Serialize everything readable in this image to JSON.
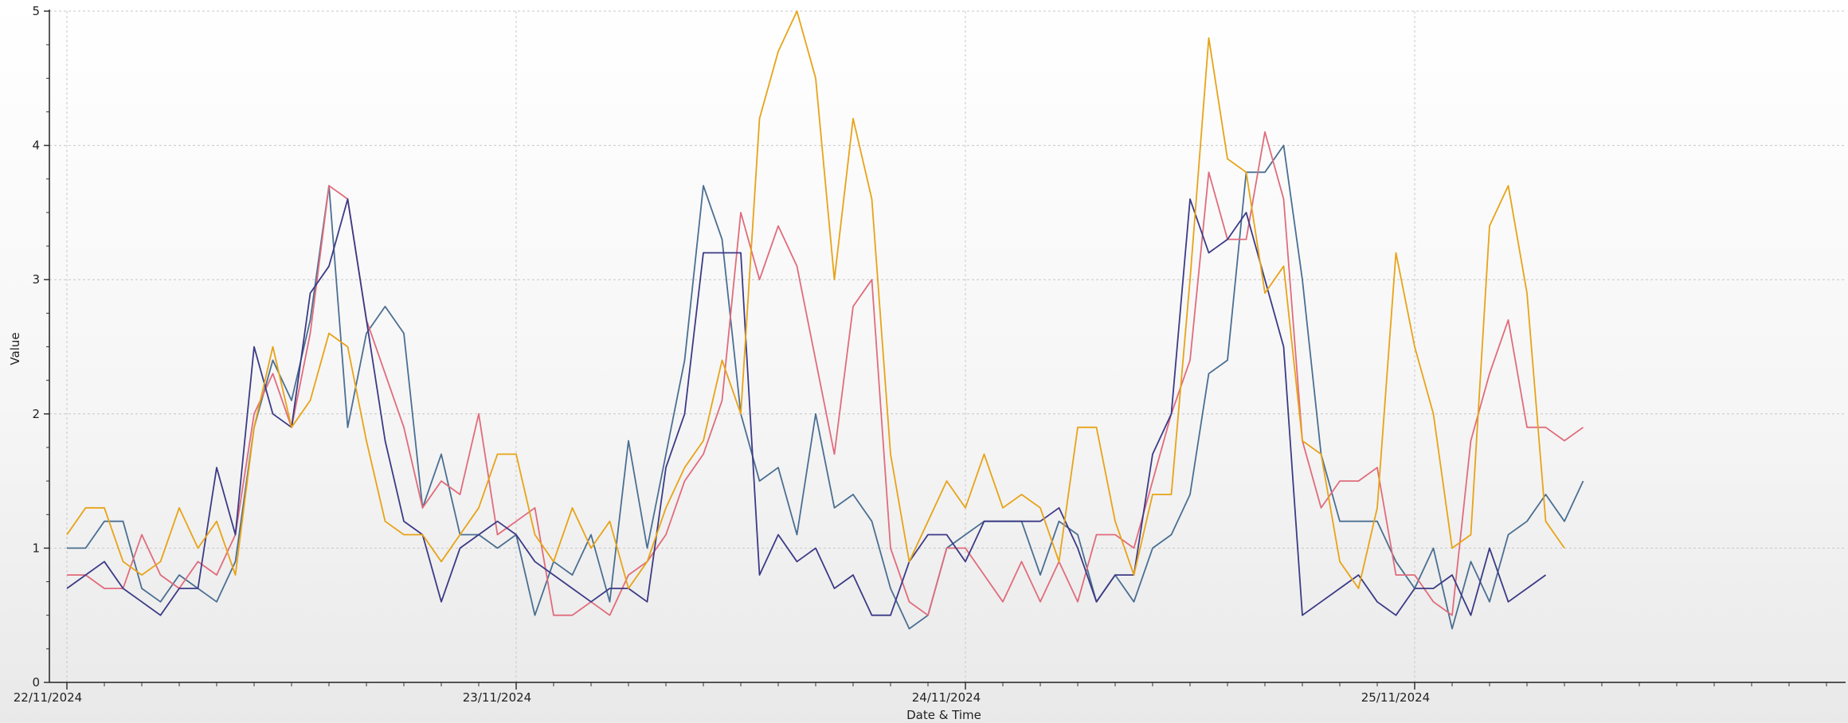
{
  "chart_data": {
    "type": "line",
    "title": "",
    "xlabel": "Date & Time",
    "ylabel": "Value",
    "ylim": [
      0,
      5
    ],
    "yticks": [
      0,
      1,
      2,
      3,
      4,
      5
    ],
    "x_axis": {
      "start": "22/11/2024 00:00",
      "end": "26/11/2024 00:00",
      "step_minutes": 60,
      "tick_labels": [
        "22/11/2024",
        "23/11/2024",
        "24/11/2024",
        "25/11/2024"
      ]
    },
    "grid": true,
    "legend": "none",
    "series": [
      {
        "color": "#4a6f92",
        "values": [
          1.0,
          1.0,
          1.2,
          1.2,
          0.7,
          0.6,
          0.8,
          0.7,
          0.6,
          0.9,
          1.9,
          2.4,
          2.1,
          2.7,
          3.7,
          1.9,
          2.6,
          2.8,
          2.6,
          1.3,
          1.7,
          1.1,
          1.1,
          1.0,
          1.1,
          0.5,
          0.9,
          0.8,
          1.1,
          0.6,
          1.8,
          1.0,
          1.7,
          2.4,
          3.7,
          3.3,
          2.0,
          1.5,
          1.6,
          1.1,
          2.0,
          1.3,
          1.4,
          1.2,
          0.7,
          0.4,
          0.5,
          1.0,
          1.1,
          1.2,
          1.2,
          1.2,
          0.8,
          1.2,
          1.1,
          0.6,
          0.8,
          0.6,
          1.0,
          1.1,
          1.4,
          2.3,
          2.4,
          3.8,
          3.8,
          4.0,
          3.0,
          1.7,
          1.2,
          1.2,
          1.2,
          0.9,
          0.7,
          1.0,
          0.4,
          0.9,
          0.6,
          1.1,
          1.2,
          1.4,
          1.2,
          1.5
        ]
      },
      {
        "color": "#e06c7c",
        "values": [
          0.8,
          0.8,
          0.7,
          0.7,
          1.1,
          0.8,
          0.7,
          0.9,
          0.8,
          1.1,
          2.0,
          2.3,
          1.9,
          2.6,
          3.7,
          3.6,
          2.7,
          2.3,
          1.9,
          1.3,
          1.5,
          1.4,
          2.0,
          1.1,
          1.2,
          1.3,
          0.5,
          0.5,
          0.6,
          0.5,
          0.8,
          0.9,
          1.1,
          1.5,
          1.7,
          2.1,
          3.5,
          3.0,
          3.4,
          3.1,
          2.4,
          1.7,
          2.8,
          3.0,
          1.0,
          0.6,
          0.5,
          1.0,
          1.0,
          0.8,
          0.6,
          0.9,
          0.6,
          0.9,
          0.6,
          1.1,
          1.1,
          1.0,
          1.5,
          2.0,
          2.4,
          3.8,
          3.3,
          3.3,
          4.1,
          3.6,
          1.8,
          1.3,
          1.5,
          1.5,
          1.6,
          0.8,
          0.8,
          0.6,
          0.5,
          1.8,
          2.3,
          2.7,
          1.9,
          1.9,
          1.8,
          1.9
        ]
      },
      {
        "color": "#3c3a86",
        "values": [
          0.7,
          0.8,
          0.9,
          0.7,
          0.6,
          0.5,
          0.7,
          0.7,
          1.6,
          1.1,
          2.5,
          2.0,
          1.9,
          2.9,
          3.1,
          3.6,
          2.7,
          1.8,
          1.2,
          1.1,
          0.6,
          1.0,
          1.1,
          1.2,
          1.1,
          0.9,
          0.8,
          0.7,
          0.6,
          0.7,
          0.7,
          0.6,
          1.6,
          2.0,
          3.2,
          3.2,
          3.2,
          0.8,
          1.1,
          0.9,
          1.0,
          0.7,
          0.8,
          0.5,
          0.5,
          0.9,
          1.1,
          1.1,
          0.9,
          1.2,
          1.2,
          1.2,
          1.2,
          1.3,
          1.0,
          0.6,
          0.8,
          0.8,
          1.7,
          2.0,
          3.6,
          3.2,
          3.3,
          3.5,
          3.0,
          2.5,
          0.5,
          0.6,
          0.7,
          0.8,
          0.6,
          0.5,
          0.7,
          0.7,
          0.8,
          0.5,
          1.0,
          0.6,
          0.7,
          0.8
        ]
      },
      {
        "color": "#e8a317",
        "values": [
          1.1,
          1.3,
          1.3,
          0.9,
          0.8,
          0.9,
          1.3,
          1.0,
          1.2,
          0.8,
          1.9,
          2.5,
          1.9,
          2.1,
          2.6,
          2.5,
          1.8,
          1.2,
          1.1,
          1.1,
          0.9,
          1.1,
          1.3,
          1.7,
          1.7,
          1.1,
          0.9,
          1.3,
          1.0,
          1.2,
          0.7,
          0.9,
          1.3,
          1.6,
          1.8,
          2.4,
          2.0,
          4.2,
          4.7,
          5.0,
          4.5,
          3.0,
          4.2,
          3.6,
          1.7,
          0.9,
          1.2,
          1.5,
          1.3,
          1.7,
          1.3,
          1.4,
          1.3,
          0.9,
          1.9,
          1.9,
          1.2,
          0.8,
          1.4,
          1.4,
          3.0,
          4.8,
          3.9,
          3.8,
          2.9,
          3.1,
          1.8,
          1.7,
          0.9,
          0.7,
          1.3,
          3.2,
          2.5,
          2.0,
          1.0,
          1.1,
          3.4,
          3.7,
          2.9,
          1.2,
          1.0
        ]
      }
    ]
  }
}
